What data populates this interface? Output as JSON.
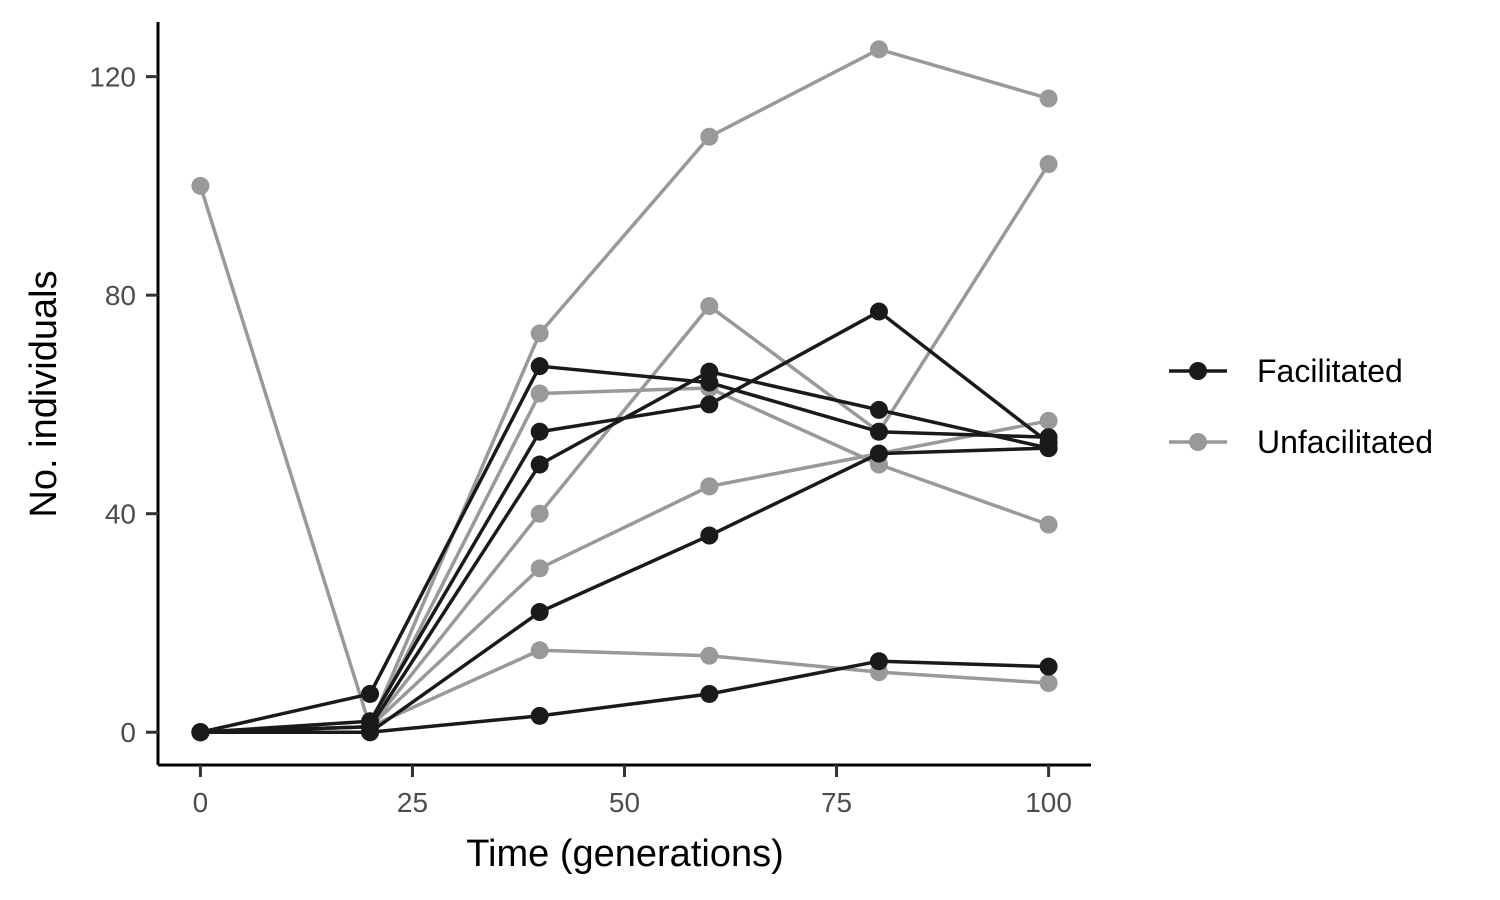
{
  "chart_data": {
    "type": "line",
    "xlabel": "Time (generations)",
    "ylabel": "No. individuals",
    "xlim": [
      -5,
      105
    ],
    "ylim": [
      -6,
      130
    ],
    "xticks": [
      0,
      25,
      50,
      75,
      100
    ],
    "yticks": [
      0,
      40,
      80,
      120
    ],
    "grid": false,
    "legend_position": "right",
    "legend": [
      {
        "name": "Facilitated",
        "color": "#1a1a1a"
      },
      {
        "name": "Unfacilitated",
        "color": "#999999"
      }
    ],
    "x": [
      0,
      20,
      40,
      60,
      80,
      100
    ],
    "series": [
      {
        "group": "Unfacilitated",
        "values": [
          100,
          1,
          73,
          109,
          125,
          116
        ]
      },
      {
        "group": "Unfacilitated",
        "values": [
          0,
          1,
          40,
          78,
          55,
          104
        ]
      },
      {
        "group": "Unfacilitated",
        "values": [
          0,
          1,
          62,
          63,
          49,
          38
        ]
      },
      {
        "group": "Unfacilitated",
        "values": [
          0,
          1,
          30,
          45,
          51,
          57
        ]
      },
      {
        "group": "Unfacilitated",
        "values": [
          0,
          1,
          15,
          14,
          11,
          9
        ]
      },
      {
        "group": "Facilitated",
        "values": [
          0,
          7,
          67,
          64,
          55,
          54
        ]
      },
      {
        "group": "Facilitated",
        "values": [
          0,
          2,
          55,
          60,
          77,
          53
        ]
      },
      {
        "group": "Facilitated",
        "values": [
          0,
          1,
          49,
          66,
          59,
          52
        ]
      },
      {
        "group": "Facilitated",
        "values": [
          0,
          0,
          22,
          36,
          51,
          52
        ]
      },
      {
        "group": "Facilitated",
        "values": [
          0,
          0,
          3,
          7,
          13,
          12
        ]
      }
    ]
  }
}
